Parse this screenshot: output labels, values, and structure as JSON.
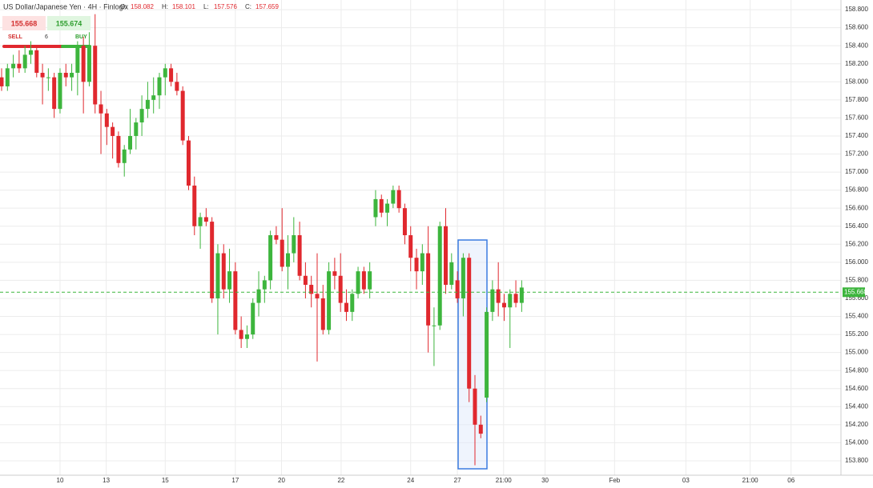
{
  "chart_data": {
    "type": "candlestick",
    "title": "US Dollar/Japanese Yen · 4H · Finlogix",
    "ohlc_header": [
      {
        "label": "O:",
        "value": 158.082
      },
      {
        "label": "H:",
        "value": 158.101
      },
      {
        "label": "L:",
        "value": 157.576
      },
      {
        "label": "C:",
        "value": 157.659
      }
    ],
    "trade_panel": {
      "sell_price": 155.668,
      "buy_price": 155.674,
      "sell_label": "SELL",
      "buy_label": "BUY",
      "quantity": 6
    },
    "current_price": 155.668,
    "up_color": "#3db53d",
    "down_color": "#e0282e",
    "grid": true,
    "open": [
      158.05,
      157.95,
      158.15,
      158.2,
      158.15,
      158.3,
      158.35,
      158.1,
      158.05,
      158.05,
      157.7,
      158.1,
      158.05,
      158.1,
      158.4,
      158.0,
      158.4,
      157.75,
      157.65,
      157.5,
      157.4,
      157.1,
      157.25,
      157.4,
      157.55,
      157.7,
      157.8,
      157.85,
      158.05,
      158.15,
      158.0,
      157.9,
      157.35,
      156.85,
      156.4,
      156.5,
      156.45,
      155.6,
      156.1,
      155.7,
      155.9,
      155.25,
      155.15,
      155.2,
      155.55,
      155.7,
      155.8,
      156.3,
      156.25,
      155.95,
      156.1,
      156.3,
      155.85,
      155.75,
      155.65,
      155.6,
      155.25,
      155.9,
      155.85,
      155.55,
      155.45,
      155.65,
      155.9,
      155.7,
      156.5,
      156.7,
      156.55,
      156.65,
      156.8,
      156.6,
      156.3,
      156.05,
      155.9,
      156.1,
      155.3,
      155.3,
      156.4,
      155.75,
      155.8,
      155.6,
      156.05,
      154.6,
      154.2,
      154.5,
      155.45,
      155.7,
      155.55,
      155.5,
      155.65,
      155.55
    ],
    "high": [
      158.15,
      158.2,
      158.3,
      158.35,
      158.4,
      158.45,
      158.4,
      158.2,
      158.15,
      158.1,
      158.15,
      158.2,
      158.2,
      158.45,
      158.5,
      158.55,
      158.75,
      157.9,
      157.7,
      157.55,
      157.45,
      157.3,
      157.7,
      157.6,
      157.85,
      158.0,
      158.05,
      158.1,
      158.2,
      158.2,
      158.1,
      157.95,
      157.4,
      156.95,
      156.55,
      156.6,
      156.5,
      156.2,
      156.2,
      156.15,
      156.0,
      155.4,
      155.3,
      155.6,
      155.9,
      155.85,
      156.35,
      156.4,
      156.6,
      156.3,
      156.5,
      156.45,
      156.0,
      155.85,
      156.1,
      155.75,
      156.0,
      156.05,
      156.1,
      155.7,
      155.7,
      155.95,
      155.95,
      156.0,
      156.8,
      156.75,
      156.7,
      156.85,
      156.85,
      156.65,
      156.4,
      156.15,
      156.2,
      156.4,
      155.5,
      156.45,
      156.6,
      156.1,
      155.9,
      156.1,
      156.1,
      154.75,
      154.3,
      155.5,
      155.8,
      156.0,
      155.65,
      155.7,
      155.8,
      155.8
    ],
    "low": [
      157.9,
      157.9,
      158.05,
      158.1,
      158.1,
      158.2,
      158.05,
      157.75,
      157.9,
      157.6,
      157.65,
      157.95,
      157.9,
      157.85,
      157.65,
      157.95,
      157.65,
      157.2,
      157.3,
      157.15,
      157.05,
      156.95,
      157.2,
      157.25,
      157.4,
      157.6,
      157.65,
      157.7,
      157.85,
      157.95,
      157.85,
      157.3,
      156.8,
      156.3,
      156.15,
      156.4,
      155.55,
      155.2,
      155.6,
      155.55,
      155.2,
      155.05,
      155.05,
      155.15,
      155.4,
      155.55,
      155.7,
      156.2,
      155.9,
      155.7,
      156.0,
      155.8,
      155.6,
      155.5,
      154.9,
      155.2,
      155.2,
      155.7,
      155.45,
      155.35,
      155.35,
      155.6,
      155.65,
      155.6,
      156.4,
      156.5,
      156.4,
      156.6,
      156.55,
      156.2,
      155.9,
      155.7,
      155.75,
      155.0,
      154.85,
      155.25,
      155.65,
      155.7,
      155.55,
      155.4,
      154.45,
      153.75,
      154.05,
      154.45,
      155.35,
      155.4,
      155.35,
      155.05,
      155.5,
      155.45
    ],
    "close": [
      157.95,
      158.15,
      158.2,
      158.15,
      158.3,
      158.35,
      158.1,
      158.05,
      158.05,
      157.7,
      158.1,
      158.05,
      158.1,
      158.4,
      158.0,
      158.4,
      157.75,
      157.65,
      157.5,
      157.4,
      157.1,
      157.25,
      157.4,
      157.55,
      157.7,
      157.8,
      157.85,
      158.05,
      158.15,
      158.0,
      157.9,
      157.35,
      156.85,
      156.4,
      156.5,
      156.45,
      155.6,
      156.1,
      155.7,
      155.9,
      155.25,
      155.15,
      155.2,
      155.55,
      155.7,
      155.8,
      156.3,
      156.25,
      155.95,
      156.1,
      156.3,
      155.85,
      155.75,
      155.65,
      155.6,
      155.25,
      155.9,
      155.85,
      155.55,
      155.45,
      155.65,
      155.9,
      155.7,
      155.9,
      156.7,
      156.55,
      156.65,
      156.8,
      156.6,
      156.3,
      156.05,
      155.9,
      156.1,
      155.3,
      155.3,
      156.4,
      155.75,
      156.0,
      155.6,
      156.05,
      154.6,
      154.2,
      154.1,
      155.45,
      155.7,
      155.55,
      155.5,
      155.65,
      155.55,
      155.72
    ],
    "xlim": [
      0,
      143.5
    ],
    "xticks": [
      {
        "value": 10.0,
        "label": "10"
      },
      {
        "value": 17.9,
        "label": "13"
      },
      {
        "value": 28.0,
        "label": "15"
      },
      {
        "value": 40.0,
        "label": "17"
      },
      {
        "value": 47.9,
        "label": "20"
      },
      {
        "value": 58.1,
        "label": "22"
      },
      {
        "value": 70.0,
        "label": "24"
      },
      {
        "value": 78.0,
        "label": "27"
      },
      {
        "value": 85.9,
        "label": "21:00"
      },
      {
        "value": 93.0,
        "label": "30"
      },
      {
        "value": 104.9,
        "label": "Feb"
      },
      {
        "value": 117.1,
        "label": "03"
      },
      {
        "value": 128.1,
        "label": "21:00"
      },
      {
        "value": 135.1,
        "label": "06"
      }
    ],
    "ylim": [
      153.64,
      158.907
    ],
    "yticks": [
      {
        "value": 153.8,
        "label": "153.800"
      },
      {
        "value": 154.0,
        "label": "154.000"
      },
      {
        "value": 154.2,
        "label": "154.200"
      },
      {
        "value": 154.4,
        "label": "154.400"
      },
      {
        "value": 154.6,
        "label": "154.600"
      },
      {
        "value": 154.8,
        "label": "154.800"
      },
      {
        "value": 155.0,
        "label": "155.000"
      },
      {
        "value": 155.2,
        "label": "155.200"
      },
      {
        "value": 155.4,
        "label": "155.400"
      },
      {
        "value": 155.6,
        "label": "155.600"
      },
      {
        "value": 155.8,
        "label": "155.800"
      },
      {
        "value": 156.0,
        "label": "156.000"
      },
      {
        "value": 156.2,
        "label": "156.200"
      },
      {
        "value": 156.4,
        "label": "156.400"
      },
      {
        "value": 156.6,
        "label": "156.600"
      },
      {
        "value": 156.8,
        "label": "156.800"
      },
      {
        "value": 157.0,
        "label": "157.000"
      },
      {
        "value": 157.2,
        "label": "157.200"
      },
      {
        "value": 157.4,
        "label": "157.400"
      },
      {
        "value": 157.6,
        "label": "157.600"
      },
      {
        "value": 157.8,
        "label": "157.800"
      },
      {
        "value": 158.0,
        "label": "158.000"
      },
      {
        "value": 158.2,
        "label": "158.200"
      },
      {
        "value": 158.4,
        "label": "158.400"
      },
      {
        "value": 158.6,
        "label": "158.600"
      },
      {
        "value": 158.8,
        "label": "158.800"
      }
    ]
  }
}
